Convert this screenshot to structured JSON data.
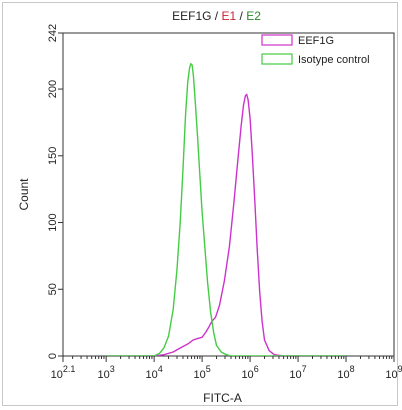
{
  "chart_data": {
    "type": "line",
    "title_parts": [
      {
        "text": "EEF1G",
        "color": "#222222"
      },
      {
        "text": " / ",
        "color": "#222222"
      },
      {
        "text": "E1",
        "color": "#cc2233"
      },
      {
        "text": " / ",
        "color": "#222222"
      },
      {
        "text": "E2",
        "color": "#2a8a2a"
      }
    ],
    "xlabel": "FITC-A",
    "ylabel": "Count",
    "x_scale": "log",
    "xlim": [
      126,
      1000000000
    ],
    "ylim": [
      0,
      242
    ],
    "x_ticks": [
      {
        "value": 126,
        "base": "10",
        "exp": "2.1"
      },
      {
        "value": 1000,
        "base": "10",
        "exp": "3"
      },
      {
        "value": 10000,
        "base": "10",
        "exp": "4"
      },
      {
        "value": 100000,
        "base": "10",
        "exp": "5"
      },
      {
        "value": 1000000,
        "base": "10",
        "exp": "6"
      },
      {
        "value": 10000000,
        "base": "10",
        "exp": "7"
      },
      {
        "value": 100000000,
        "base": "10",
        "exp": "8"
      },
      {
        "value": 1000000000,
        "base": "10",
        "exp": "9"
      }
    ],
    "y_ticks": [
      "0",
      "50",
      "100",
      "150",
      "200",
      "242"
    ],
    "legend_position": "top-right",
    "series": [
      {
        "name": "EEF1G",
        "color": "#cc33cc",
        "points": [
          [
            1000,
            0
          ],
          [
            10000,
            0
          ],
          [
            16000,
            1
          ],
          [
            25000,
            3
          ],
          [
            35000,
            6
          ],
          [
            50000,
            9
          ],
          [
            65000,
            12
          ],
          [
            80000,
            13
          ],
          [
            100000,
            14
          ],
          [
            120000,
            18
          ],
          [
            140000,
            22
          ],
          [
            160000,
            26
          ],
          [
            190000,
            29
          ],
          [
            230000,
            38
          ],
          [
            290000,
            56
          ],
          [
            370000,
            82
          ],
          [
            460000,
            115
          ],
          [
            560000,
            148
          ],
          [
            650000,
            172
          ],
          [
            730000,
            188
          ],
          [
            800000,
            195
          ],
          [
            850000,
            196
          ],
          [
            910000,
            192
          ],
          [
            1000000,
            178
          ],
          [
            1120000,
            150
          ],
          [
            1260000,
            115
          ],
          [
            1410000,
            80
          ],
          [
            1590000,
            48
          ],
          [
            1780000,
            26
          ],
          [
            2000000,
            12
          ],
          [
            2500000,
            4
          ],
          [
            3200000,
            1
          ],
          [
            5000000,
            0
          ],
          [
            100000000,
            0
          ]
        ]
      },
      {
        "name": "Isotype control",
        "color": "#44cc44",
        "points": [
          [
            1000,
            0
          ],
          [
            10000,
            0
          ],
          [
            13000,
            2
          ],
          [
            16000,
            6
          ],
          [
            20000,
            15
          ],
          [
            25000,
            35
          ],
          [
            30000,
            65
          ],
          [
            35000,
            100
          ],
          [
            40000,
            140
          ],
          [
            45000,
            180
          ],
          [
            50000,
            205
          ],
          [
            55000,
            216
          ],
          [
            58000,
            219
          ],
          [
            62000,
            218
          ],
          [
            66000,
            210
          ],
          [
            72000,
            190
          ],
          [
            80000,
            165
          ],
          [
            90000,
            135
          ],
          [
            100000,
            108
          ],
          [
            115000,
            80
          ],
          [
            130000,
            55
          ],
          [
            150000,
            33
          ],
          [
            175000,
            17
          ],
          [
            200000,
            8
          ],
          [
            250000,
            3
          ],
          [
            320000,
            1
          ],
          [
            400000,
            0
          ],
          [
            100000000,
            0
          ]
        ]
      }
    ]
  }
}
